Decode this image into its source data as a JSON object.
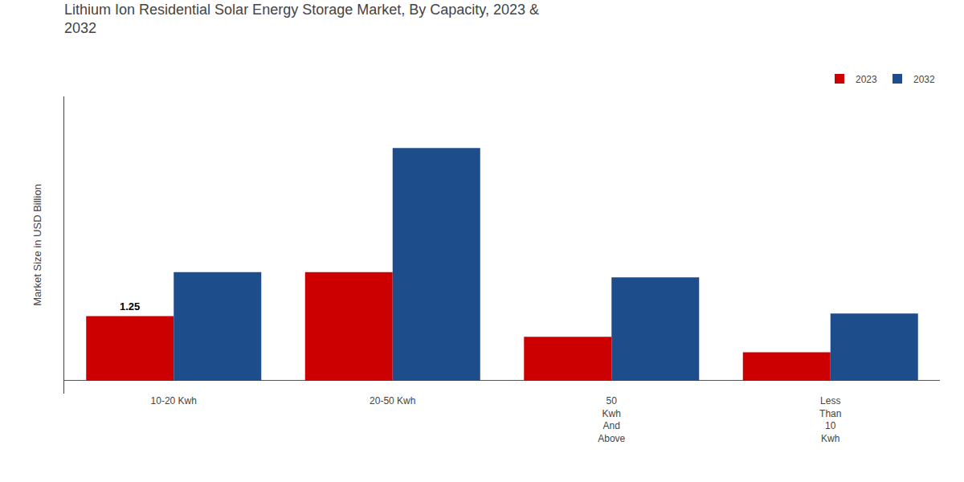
{
  "chart_data": {
    "type": "bar",
    "title": "Lithium Ion Residential Solar Energy Storage Market, By Capacity, 2023 &\n2032",
    "ylabel": "Market Size in USD Billion",
    "categories": [
      "10-20 Kwh",
      "20-50 Kwh",
      "50\nKwh\nAnd\nAbove",
      "Less\nThan\n10\nKwh"
    ],
    "series": [
      {
        "name": "2023",
        "color": "#cc0000",
        "values": [
          1.25,
          2.1,
          0.85,
          0.55
        ]
      },
      {
        "name": "2032",
        "color": "#1e4d8c",
        "values": [
          2.1,
          4.5,
          2.0,
          1.3
        ]
      }
    ],
    "ylim": [
      -0.25,
      5.5
    ],
    "yticks": [],
    "tick_labels": "x",
    "grid": false,
    "legend": "upper right",
    "annotations": [
      {
        "text": "1.25",
        "category": "10-20 Kwh",
        "series": "2023"
      }
    ]
  }
}
